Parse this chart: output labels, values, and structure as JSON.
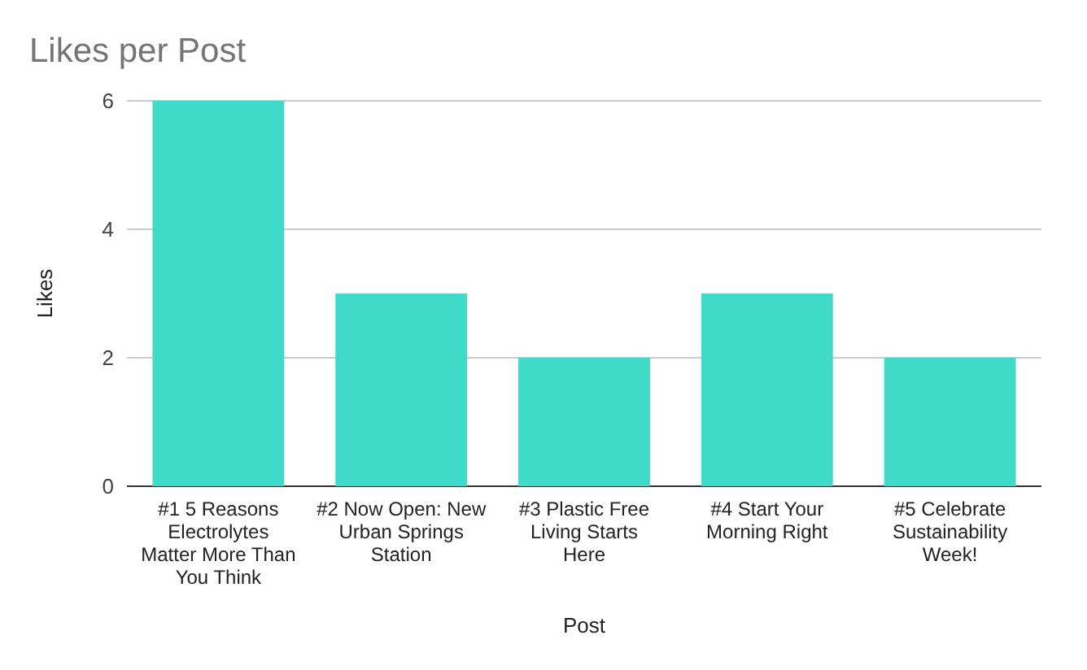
{
  "chart_data": {
    "type": "bar",
    "title": "Likes per Post",
    "xlabel": "Post",
    "ylabel": "Likes",
    "categories": [
      "#1 5 Reasons Electrolytes Matter More Than You Think",
      "#2 Now Open: New Urban Springs Station",
      "#3 Plastic Free Living Starts Here",
      "#4 Start Your Morning Right",
      "#5 Celebrate Sustainability Week!"
    ],
    "values": [
      6,
      3,
      2,
      3,
      2
    ],
    "color": "#40dac9",
    "ylim": [
      0,
      6
    ],
    "yticks": [
      0,
      2,
      4,
      6
    ],
    "grid": "y"
  }
}
